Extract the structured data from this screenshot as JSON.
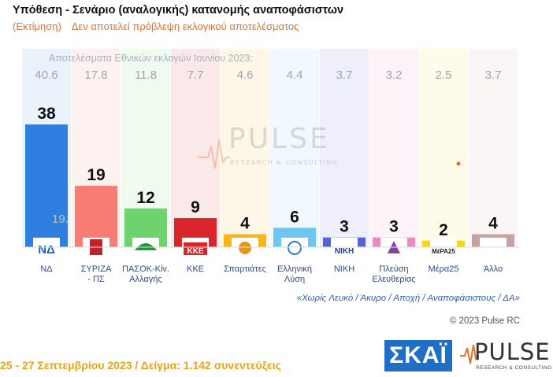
{
  "header": {
    "title": "Υπόθεση - Σενάριο (αναλογικής) κατανομής αναποφάσιστων",
    "estimate_label": "(Εκτίμηση)",
    "disclaimer": "Δεν αποτελεί πρόβλεψη εκλογικού αποτελέσματος"
  },
  "chart_data": {
    "type": "bar",
    "reference_label": "Αποτελέσματα Εθνικών εκλογών Ιουνίου 2023:",
    "categories": [
      "ΝΔ",
      "ΣΥΡΙΖΑ - ΠΣ",
      "ΠΑΣΟΚ-Κιν. Αλλαγής",
      "ΚΚΕ",
      "Σπαρτιάτες",
      "Ελληνική Λύση",
      "ΝΙΚΗ",
      "Πλεύση Ελευθερίας",
      "Μέρα25",
      "Άλλο"
    ],
    "category_lines": [
      [
        "ΝΔ"
      ],
      [
        "ΣΥΡΙΖΑ",
        "- ΠΣ"
      ],
      [
        "ΠΑΣΟΚ-Κίν.",
        "Αλλαγής"
      ],
      [
        "ΚΚΕ"
      ],
      [
        "Σπαρτιάτες"
      ],
      [
        "Ελληνική",
        "Λύση"
      ],
      [
        "ΝΙΚΗ"
      ],
      [
        "Πλεύση",
        "Ελευθερίας"
      ],
      [
        "Μέρα25"
      ],
      [
        "Άλλο"
      ]
    ],
    "series": [
      {
        "values": [
          38,
          19,
          12,
          9,
          4,
          6,
          3,
          3,
          2,
          4
        ]
      },
      {
        "values": [
          40.6,
          17.8,
          11.8,
          7.7,
          4.6,
          4.4,
          3.7,
          3.2,
          2.5,
          3.7
        ]
      }
    ],
    "labels_current": [
      "38",
      "19",
      "12",
      "9",
      "4",
      "6",
      "3",
      "3",
      "2",
      "4"
    ],
    "labels_previous": [
      "40.6",
      "17.8",
      "11.8",
      "7.7",
      "4.6",
      "4.4",
      "3.7",
      "3.2",
      "2.5",
      "3.7"
    ],
    "ghost_label": "19.",
    "logo_texts": [
      "ΝΔ",
      "",
      "",
      "ΚΚΕ",
      "",
      "",
      "ΝΙΚΗ",
      "",
      "ΜέΡΑ25",
      ""
    ],
    "colors": [
      "#2f7fe0",
      "#f77d74",
      "#6ed36e",
      "#d8252b",
      "#f7b51b",
      "#6fc6f2",
      "#5563d6",
      "#e98bc2",
      "#f7d51e",
      "#c6a3a0"
    ],
    "ylim": [
      0,
      50
    ]
  },
  "watermark": {
    "brand": "PULSE",
    "tagline": "RESEARCH & CONSULTING"
  },
  "notes": {
    "exclusions": "«Χωρίς Λευκό / Άκυρο / Αποχή / Αναποφάσιστους / ΔΑ»",
    "copyright": "© 2023 Pulse RC"
  },
  "footer": {
    "fieldwork": "25 - 27 Σεπτεμβρίου  2023  /  Δείγμα:  1.142 συνεντεύξεις"
  },
  "logos": {
    "skai": "ΣΚΑΪ",
    "pulse": "PULSE",
    "pulse_tagline": "RESEARCH & CONSULTING"
  }
}
